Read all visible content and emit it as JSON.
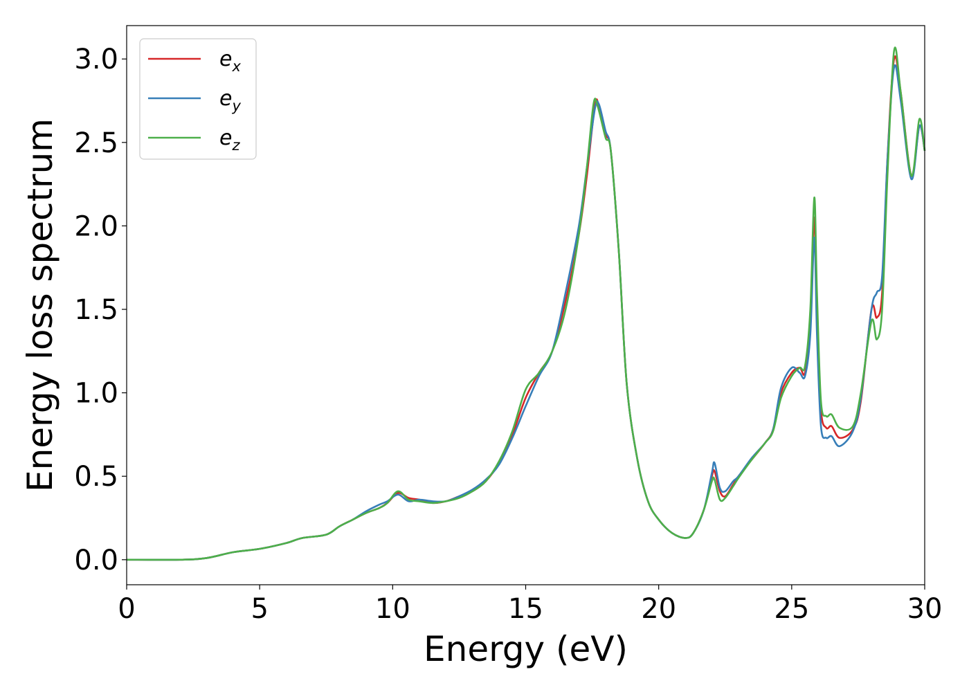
{
  "chart_data": {
    "type": "line",
    "xlabel": "Energy (eV)",
    "ylabel": "Energy loss spectrum",
    "xlim": [
      0,
      30
    ],
    "ylim": [
      -0.15,
      3.2
    ],
    "xticks": [
      0,
      5,
      10,
      15,
      20,
      25,
      30
    ],
    "xtick_labels": [
      "0",
      "5",
      "10",
      "15",
      "20",
      "25",
      "30"
    ],
    "yticks": [
      0.0,
      0.5,
      1.0,
      1.5,
      2.0,
      2.5,
      3.0
    ],
    "ytick_labels": [
      "0.0",
      "0.5",
      "1.0",
      "1.5",
      "2.0",
      "2.5",
      "3.0"
    ],
    "grid": false,
    "legend_position": "top-left",
    "series": [
      {
        "name": "e",
        "subscript": "x",
        "color": "#d62728",
        "points": [
          [
            0,
            0
          ],
          [
            2,
            0
          ],
          [
            3,
            0.01
          ],
          [
            4,
            0.045
          ],
          [
            5,
            0.065
          ],
          [
            6,
            0.1
          ],
          [
            6.6,
            0.13
          ],
          [
            7.5,
            0.15
          ],
          [
            8,
            0.2
          ],
          [
            8.5,
            0.24
          ],
          [
            9,
            0.28
          ],
          [
            9.5,
            0.31
          ],
          [
            9.8,
            0.34
          ],
          [
            10.2,
            0.4
          ],
          [
            10.6,
            0.37
          ],
          [
            11,
            0.36
          ],
          [
            11.5,
            0.34
          ],
          [
            12,
            0.35
          ],
          [
            12.5,
            0.38
          ],
          [
            13,
            0.41
          ],
          [
            13.5,
            0.47
          ],
          [
            14,
            0.58
          ],
          [
            14.5,
            0.75
          ],
          [
            15,
            0.97
          ],
          [
            15.5,
            1.12
          ],
          [
            16,
            1.25
          ],
          [
            16.5,
            1.55
          ],
          [
            17,
            1.95
          ],
          [
            17.3,
            2.3
          ],
          [
            17.6,
            2.72
          ],
          [
            17.75,
            2.72
          ],
          [
            18,
            2.55
          ],
          [
            18.2,
            2.45
          ],
          [
            18.5,
            1.85
          ],
          [
            18.8,
            1.05
          ],
          [
            19.2,
            0.6
          ],
          [
            19.6,
            0.35
          ],
          [
            20,
            0.24
          ],
          [
            20.5,
            0.16
          ],
          [
            21,
            0.13
          ],
          [
            21.3,
            0.16
          ],
          [
            21.7,
            0.3
          ],
          [
            22,
            0.5
          ],
          [
            22.1,
            0.53
          ],
          [
            22.3,
            0.41
          ],
          [
            22.5,
            0.38
          ],
          [
            22.8,
            0.45
          ],
          [
            23,
            0.5
          ],
          [
            23.5,
            0.6
          ],
          [
            24,
            0.7
          ],
          [
            24.3,
            0.78
          ],
          [
            24.6,
            1.0
          ],
          [
            25,
            1.12
          ],
          [
            25.3,
            1.15
          ],
          [
            25.5,
            1.12
          ],
          [
            25.7,
            1.4
          ],
          [
            25.85,
            2.05
          ],
          [
            25.95,
            1.5
          ],
          [
            26.1,
            0.9
          ],
          [
            26.3,
            0.79
          ],
          [
            26.5,
            0.8
          ],
          [
            26.8,
            0.73
          ],
          [
            27.3,
            0.78
          ],
          [
            27.6,
            0.95
          ],
          [
            28,
            1.5
          ],
          [
            28.2,
            1.45
          ],
          [
            28.4,
            1.6
          ],
          [
            28.6,
            2.4
          ],
          [
            28.85,
            3.0
          ],
          [
            29.1,
            2.8
          ],
          [
            29.5,
            2.3
          ],
          [
            29.8,
            2.6
          ],
          [
            30,
            2.45
          ]
        ]
      },
      {
        "name": "e",
        "subscript": "y",
        "color": "#377eb8",
        "points": [
          [
            0,
            0
          ],
          [
            2,
            0
          ],
          [
            3,
            0.01
          ],
          [
            4,
            0.045
          ],
          [
            5,
            0.065
          ],
          [
            6,
            0.1
          ],
          [
            6.6,
            0.13
          ],
          [
            7.5,
            0.15
          ],
          [
            8,
            0.2
          ],
          [
            8.5,
            0.24
          ],
          [
            9,
            0.29
          ],
          [
            9.5,
            0.33
          ],
          [
            9.8,
            0.35
          ],
          [
            10.2,
            0.39
          ],
          [
            10.6,
            0.35
          ],
          [
            11,
            0.36
          ],
          [
            11.5,
            0.35
          ],
          [
            12,
            0.35
          ],
          [
            12.5,
            0.38
          ],
          [
            13,
            0.42
          ],
          [
            13.5,
            0.48
          ],
          [
            14,
            0.57
          ],
          [
            14.5,
            0.73
          ],
          [
            15,
            0.92
          ],
          [
            15.5,
            1.1
          ],
          [
            16,
            1.25
          ],
          [
            16.5,
            1.6
          ],
          [
            17,
            2.0
          ],
          [
            17.3,
            2.35
          ],
          [
            17.6,
            2.7
          ],
          [
            17.75,
            2.73
          ],
          [
            18,
            2.57
          ],
          [
            18.2,
            2.45
          ],
          [
            18.5,
            1.85
          ],
          [
            18.8,
            1.05
          ],
          [
            19.2,
            0.6
          ],
          [
            19.6,
            0.35
          ],
          [
            20,
            0.24
          ],
          [
            20.5,
            0.16
          ],
          [
            21,
            0.13
          ],
          [
            21.3,
            0.16
          ],
          [
            21.7,
            0.3
          ],
          [
            22,
            0.52
          ],
          [
            22.1,
            0.58
          ],
          [
            22.3,
            0.43
          ],
          [
            22.5,
            0.41
          ],
          [
            22.8,
            0.47
          ],
          [
            23,
            0.5
          ],
          [
            23.5,
            0.61
          ],
          [
            24,
            0.7
          ],
          [
            24.3,
            0.78
          ],
          [
            24.6,
            1.03
          ],
          [
            25,
            1.15
          ],
          [
            25.3,
            1.12
          ],
          [
            25.5,
            1.1
          ],
          [
            25.7,
            1.35
          ],
          [
            25.85,
            1.93
          ],
          [
            25.95,
            1.35
          ],
          [
            26.1,
            0.8
          ],
          [
            26.3,
            0.73
          ],
          [
            26.5,
            0.74
          ],
          [
            26.8,
            0.68
          ],
          [
            27.3,
            0.77
          ],
          [
            27.6,
            0.97
          ],
          [
            28,
            1.5
          ],
          [
            28.2,
            1.6
          ],
          [
            28.4,
            1.7
          ],
          [
            28.6,
            2.4
          ],
          [
            28.85,
            2.95
          ],
          [
            29.1,
            2.75
          ],
          [
            29.5,
            2.28
          ],
          [
            29.8,
            2.6
          ],
          [
            30,
            2.45
          ]
        ]
      },
      {
        "name": "e",
        "subscript": "z",
        "color": "#4daf4a",
        "points": [
          [
            0,
            0
          ],
          [
            2,
            0
          ],
          [
            3,
            0.01
          ],
          [
            4,
            0.045
          ],
          [
            5,
            0.065
          ],
          [
            6,
            0.1
          ],
          [
            6.6,
            0.13
          ],
          [
            7.5,
            0.15
          ],
          [
            8,
            0.2
          ],
          [
            8.5,
            0.24
          ],
          [
            9,
            0.28
          ],
          [
            9.5,
            0.31
          ],
          [
            9.8,
            0.34
          ],
          [
            10.2,
            0.41
          ],
          [
            10.6,
            0.36
          ],
          [
            11,
            0.35
          ],
          [
            11.5,
            0.34
          ],
          [
            12,
            0.35
          ],
          [
            12.5,
            0.37
          ],
          [
            13,
            0.41
          ],
          [
            13.5,
            0.47
          ],
          [
            14,
            0.59
          ],
          [
            14.5,
            0.77
          ],
          [
            15,
            1.02
          ],
          [
            15.5,
            1.12
          ],
          [
            16,
            1.25
          ],
          [
            16.5,
            1.5
          ],
          [
            17,
            1.95
          ],
          [
            17.3,
            2.35
          ],
          [
            17.55,
            2.73
          ],
          [
            17.7,
            2.72
          ],
          [
            18,
            2.53
          ],
          [
            18.2,
            2.45
          ],
          [
            18.5,
            1.85
          ],
          [
            18.8,
            1.05
          ],
          [
            19.2,
            0.6
          ],
          [
            19.6,
            0.35
          ],
          [
            20,
            0.24
          ],
          [
            20.5,
            0.16
          ],
          [
            21,
            0.13
          ],
          [
            21.3,
            0.16
          ],
          [
            21.7,
            0.3
          ],
          [
            22,
            0.47
          ],
          [
            22.1,
            0.48
          ],
          [
            22.3,
            0.36
          ],
          [
            22.5,
            0.37
          ],
          [
            22.8,
            0.44
          ],
          [
            23,
            0.49
          ],
          [
            23.5,
            0.6
          ],
          [
            24,
            0.7
          ],
          [
            24.3,
            0.77
          ],
          [
            24.6,
            0.97
          ],
          [
            25,
            1.1
          ],
          [
            25.3,
            1.15
          ],
          [
            25.5,
            1.16
          ],
          [
            25.7,
            1.5
          ],
          [
            25.85,
            2.17
          ],
          [
            25.95,
            1.6
          ],
          [
            26.1,
            0.95
          ],
          [
            26.3,
            0.86
          ],
          [
            26.5,
            0.87
          ],
          [
            26.8,
            0.79
          ],
          [
            27.3,
            0.8
          ],
          [
            27.6,
            1.0
          ],
          [
            28,
            1.43
          ],
          [
            28.2,
            1.32
          ],
          [
            28.4,
            1.5
          ],
          [
            28.6,
            2.3
          ],
          [
            28.85,
            3.05
          ],
          [
            29.1,
            2.8
          ],
          [
            29.5,
            2.3
          ],
          [
            29.8,
            2.64
          ],
          [
            30,
            2.45
          ]
        ]
      }
    ]
  }
}
